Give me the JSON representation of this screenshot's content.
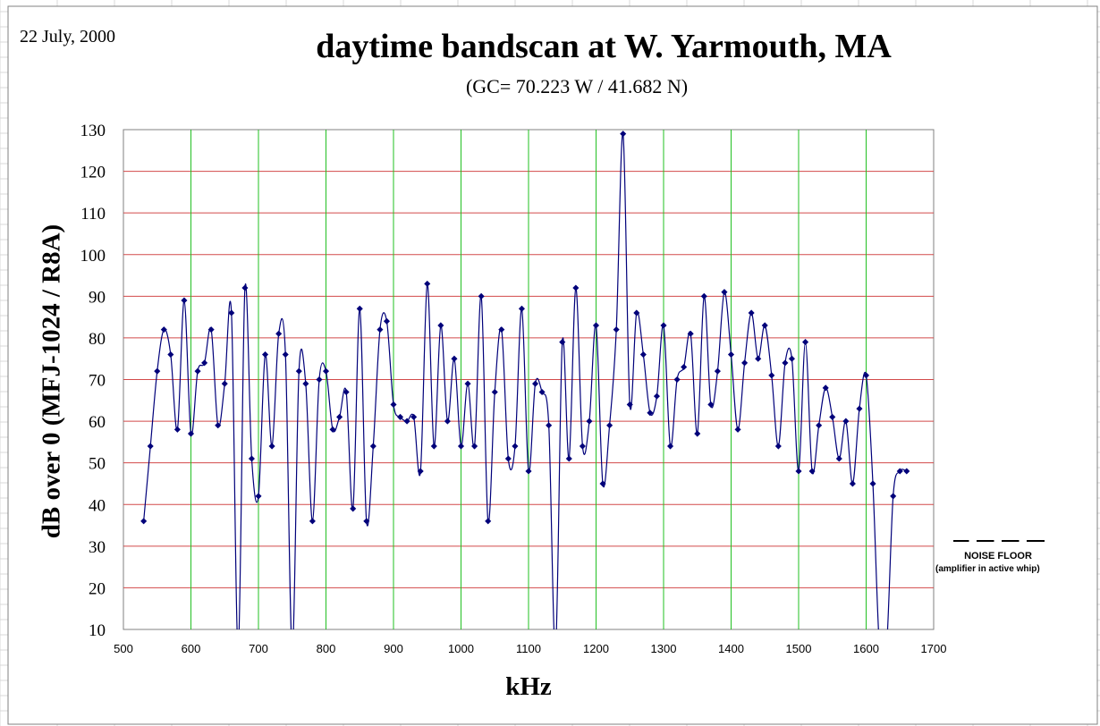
{
  "date_label": "22 July, 2000",
  "chart_data": {
    "type": "line",
    "title": "daytime bandscan at W. Yarmouth, MA",
    "subtitle": "(GC= 70.223 W / 41.682 N)",
    "xlabel": "kHz",
    "ylabel": "dB over 0 (MFJ-1024 / R8A)",
    "xlim": [
      500,
      1700
    ],
    "ylim": [
      10,
      130
    ],
    "xticks": [
      500,
      600,
      700,
      800,
      900,
      1000,
      1100,
      1200,
      1300,
      1400,
      1500,
      1600,
      1700
    ],
    "yticks": [
      10,
      20,
      30,
      40,
      50,
      60,
      70,
      80,
      90,
      100,
      110,
      120,
      130
    ],
    "grid": true,
    "x": [
      530,
      540,
      550,
      560,
      570,
      580,
      590,
      600,
      610,
      620,
      630,
      640,
      650,
      660,
      670,
      680,
      690,
      700,
      710,
      720,
      730,
      740,
      750,
      760,
      770,
      780,
      790,
      800,
      810,
      820,
      830,
      840,
      850,
      860,
      870,
      880,
      890,
      900,
      910,
      920,
      930,
      940,
      950,
      960,
      970,
      980,
      990,
      1000,
      1010,
      1020,
      1030,
      1040,
      1050,
      1060,
      1070,
      1080,
      1090,
      1100,
      1110,
      1120,
      1130,
      1140,
      1150,
      1160,
      1170,
      1180,
      1190,
      1200,
      1210,
      1220,
      1230,
      1240,
      1250,
      1260,
      1270,
      1280,
      1290,
      1300,
      1310,
      1320,
      1330,
      1340,
      1350,
      1360,
      1370,
      1380,
      1390,
      1400,
      1410,
      1420,
      1430,
      1440,
      1450,
      1460,
      1470,
      1480,
      1490,
      1500,
      1510,
      1520,
      1530,
      1540,
      1550,
      1560,
      1570,
      1580,
      1590,
      1600,
      1610,
      1620,
      1630,
      1640,
      1650,
      1660
    ],
    "series": [
      {
        "values": [
          36,
          54,
          72,
          82,
          76,
          58,
          89,
          57,
          72,
          74,
          82,
          59,
          69,
          86,
          5,
          92,
          51,
          42,
          76,
          54,
          81,
          76,
          5,
          72,
          69,
          36,
          70,
          72,
          58,
          61,
          67,
          39,
          87,
          36,
          54,
          82,
          84,
          64,
          61,
          60,
          61,
          48,
          93,
          54,
          83,
          60,
          75,
          54,
          69,
          54,
          90,
          36,
          67,
          82,
          51,
          54,
          87,
          48,
          69,
          67,
          59,
          5,
          79,
          51,
          92,
          54,
          60,
          83,
          45,
          59,
          82,
          129,
          64,
          86,
          76,
          62,
          66,
          83,
          54,
          70,
          73,
          81,
          57,
          90,
          64,
          72,
          91,
          76,
          58,
          74,
          86,
          75,
          83,
          71,
          54,
          74,
          75,
          48,
          79,
          48,
          59,
          68,
          61,
          51,
          60,
          45,
          63,
          71,
          45,
          5,
          5,
          42,
          48,
          48
        ],
        "marker_color": "#00007a",
        "line_color": "#00007a"
      }
    ],
    "colors": {
      "v_grid": "#22c022",
      "h_grid": "#d24a4a",
      "line": "#00007a"
    },
    "legend": {
      "style": "dashed",
      "title": "NOISE FLOOR",
      "subtitle": "(amplifier in active whip)",
      "placement": "right"
    }
  }
}
